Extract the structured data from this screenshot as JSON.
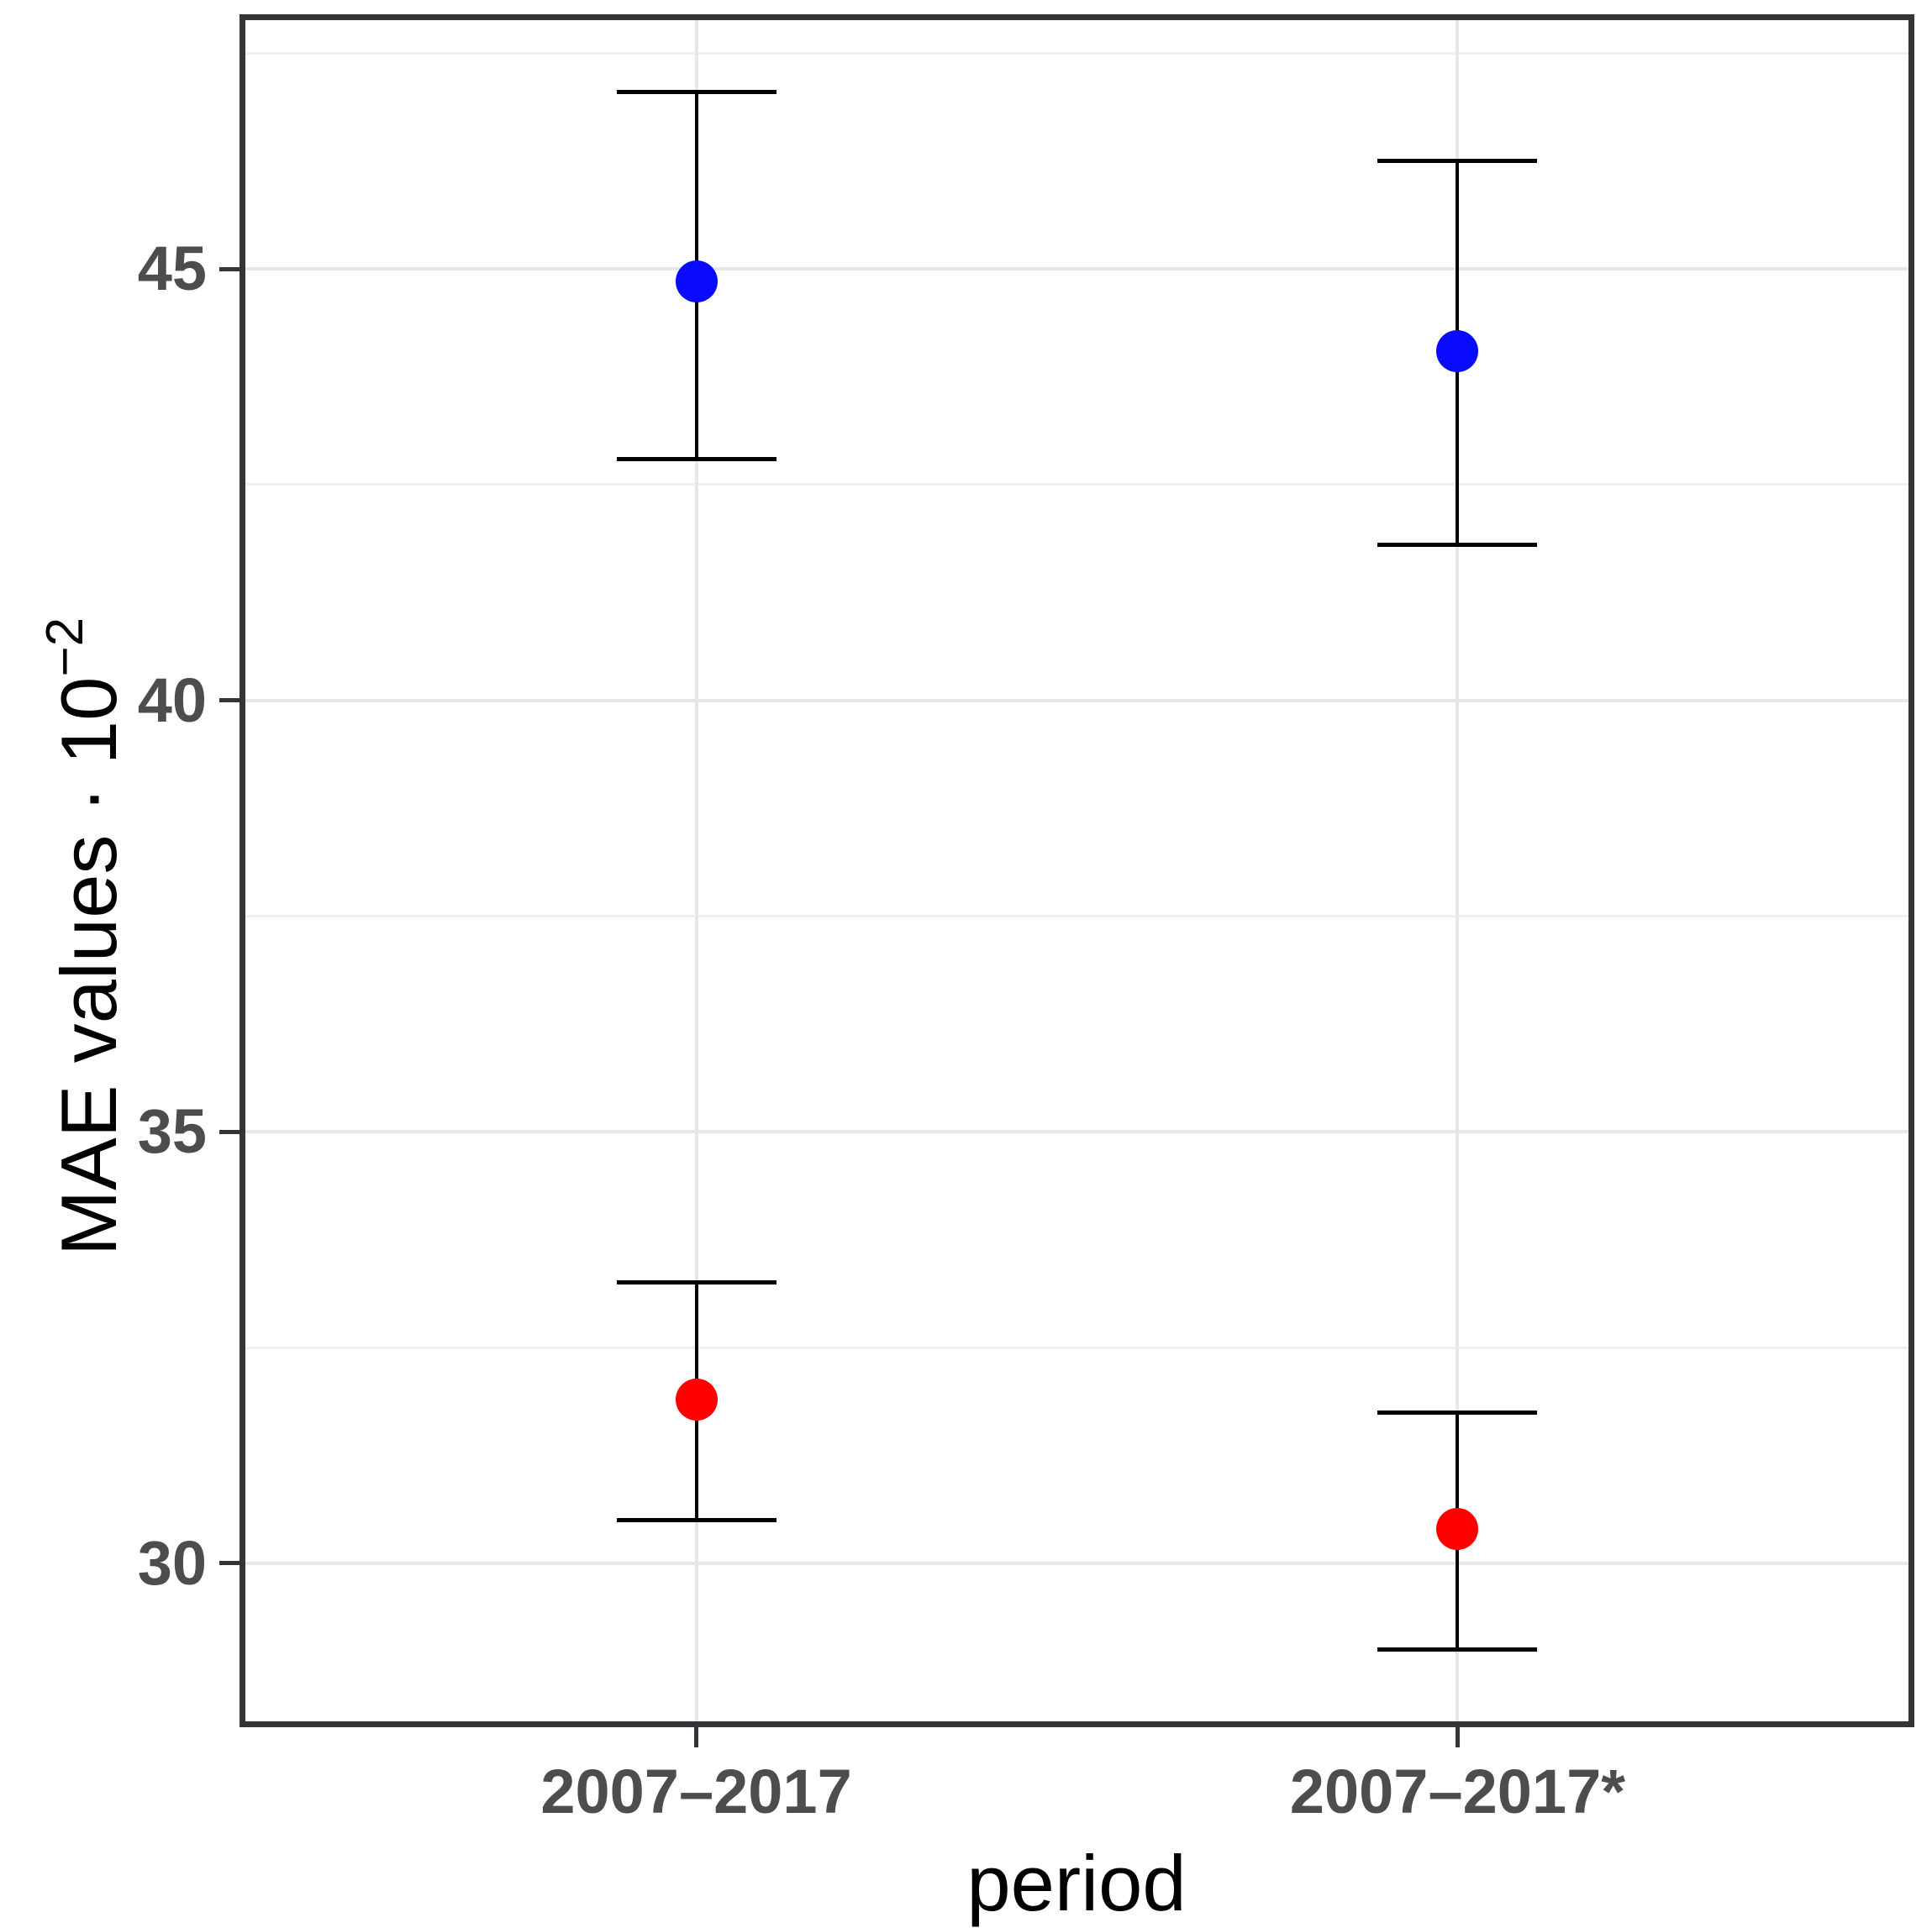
{
  "figure": {
    "x_axis_title": "period",
    "y_axis_title_main": "MAE values · 10",
    "y_axis_title_superscript": "−2"
  },
  "chart_data": {
    "type": "scatter",
    "title": "",
    "xlabel": "period",
    "ylabel": "MAE values · 10^−2",
    "categories": [
      "2007–2017",
      "2007–2017*"
    ],
    "ylim": [
      28.1,
      47.95
    ],
    "yticks_major": [
      30,
      35,
      40,
      45
    ],
    "yticks_minor": [
      32.5,
      37.5,
      42.5,
      47.5
    ],
    "grid": "major and minor horizontal gridlines, vertical gridline at each category",
    "legend": "none",
    "series": [
      {
        "name": "blue",
        "color": "#0a0aff",
        "points": [
          {
            "category": "2007–2017",
            "y": 44.85,
            "ylo": 42.8,
            "yhi": 47.05
          },
          {
            "category": "2007–2017*",
            "y": 44.05,
            "ylo": 41.8,
            "yhi": 46.25
          }
        ]
      },
      {
        "name": "red",
        "color": "#ff0000",
        "points": [
          {
            "category": "2007–2017",
            "y": 31.9,
            "ylo": 30.5,
            "yhi": 33.25
          },
          {
            "category": "2007–2017*",
            "y": 30.4,
            "ylo": 29.0,
            "yhi": 31.75
          }
        ]
      }
    ],
    "error_bars": "vertical line with flat caps at ylo and yhi for every point",
    "background": "#ffffff",
    "panel_border_color": "#333639",
    "tick_label_color": "#4d4d4d",
    "gridline_color": "#e7e7e7"
  }
}
